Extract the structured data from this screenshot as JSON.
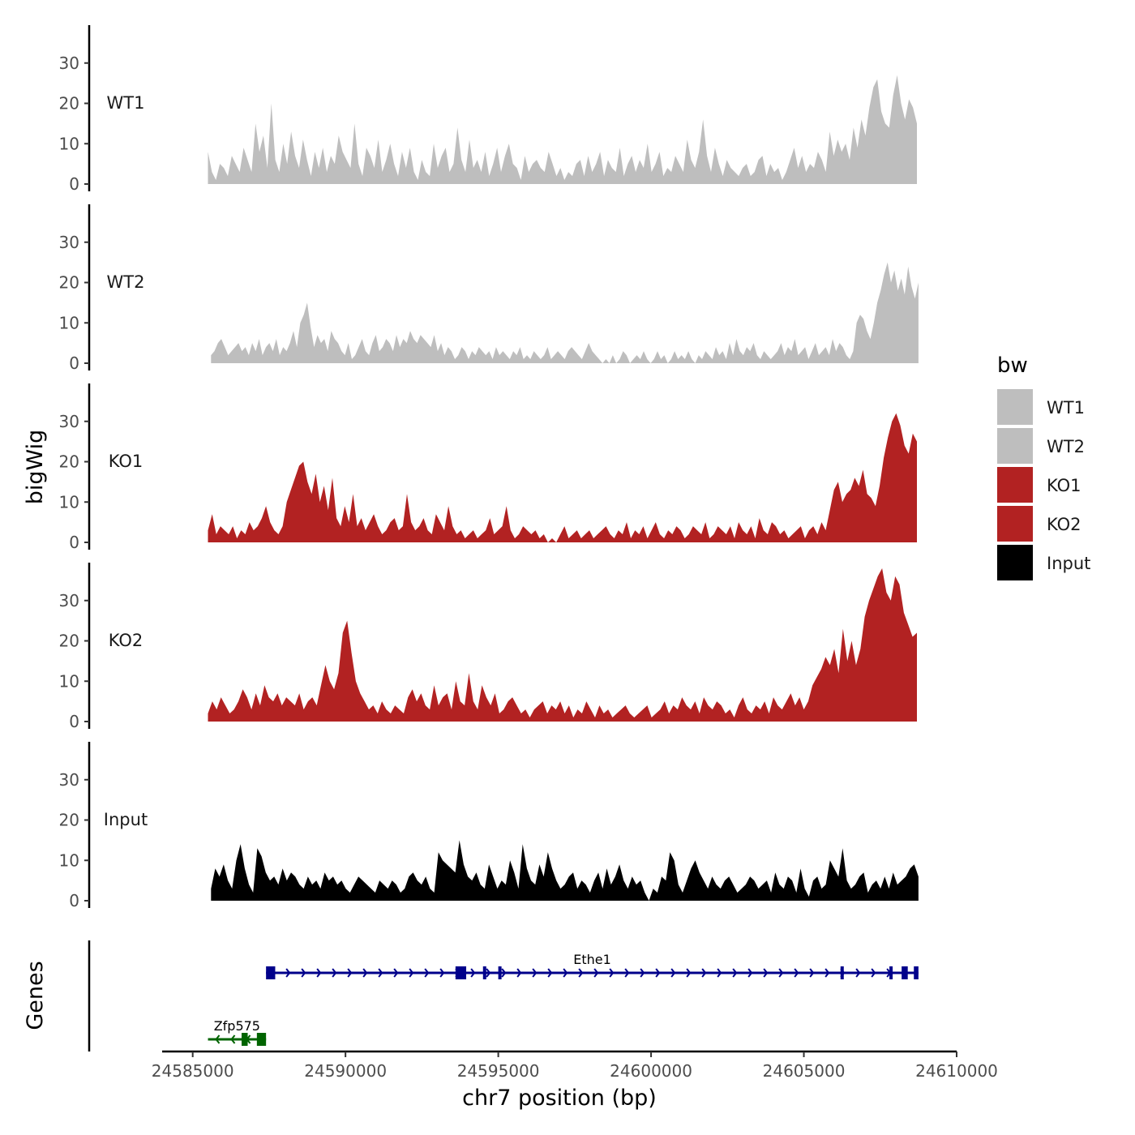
{
  "chart_data": {
    "type": "area",
    "ylabel": "bigWig",
    "xlabel": "chr7 position (bp)",
    "xlim": [
      24584000,
      24610000
    ],
    "x_ticks": [
      24585000,
      24590000,
      24595000,
      24600000,
      24605000,
      24610000
    ],
    "x_tick_labels": [
      "24585000",
      "24590000",
      "24595000",
      "24600000",
      "24605000",
      "24610000"
    ],
    "ylim": [
      0,
      40
    ],
    "y_ticks": [
      0,
      10,
      20,
      30
    ],
    "y_tick_labels": [
      "0",
      "10",
      "20",
      "30"
    ],
    "legend": {
      "title": "bw",
      "position": "right",
      "entries": [
        {
          "label": "WT1",
          "color": "#BEBEBE"
        },
        {
          "label": "WT2",
          "color": "#BEBEBE"
        },
        {
          "label": "KO1",
          "color": "#B22222"
        },
        {
          "label": "KO2",
          "color": "#B22222"
        },
        {
          "label": "Input",
          "color": "#000000"
        }
      ]
    },
    "series": [
      {
        "name": "WT1",
        "color": "#BEBEBE",
        "x_start": 24585500,
        "x_end": 24608700,
        "values": [
          8,
          3,
          1,
          5,
          4,
          2,
          7,
          5,
          3,
          9,
          6,
          3,
          15,
          8,
          12,
          4,
          20,
          6,
          3,
          10,
          5,
          13,
          7,
          4,
          11,
          6,
          2,
          8,
          4,
          9,
          3,
          7,
          5,
          12,
          8,
          6,
          4,
          15,
          5,
          2,
          9,
          7,
          4,
          11,
          3,
          6,
          10,
          5,
          2,
          8,
          4,
          9,
          3,
          1,
          6,
          3,
          2,
          10,
          4,
          7,
          9,
          3,
          5,
          14,
          6,
          3,
          11,
          4,
          6,
          3,
          8,
          2,
          5,
          9,
          3,
          7,
          10,
          5,
          4,
          1,
          7,
          3,
          5,
          6,
          4,
          3,
          8,
          5,
          2,
          4,
          1,
          3,
          2,
          5,
          6,
          2,
          7,
          3,
          5,
          8,
          2,
          6,
          4,
          3,
          9,
          2,
          5,
          7,
          3,
          6,
          4,
          10,
          3,
          5,
          8,
          2,
          4,
          3,
          7,
          5,
          3,
          11,
          6,
          4,
          8,
          16,
          7,
          3,
          9,
          5,
          2,
          6,
          4,
          3,
          2,
          4,
          5,
          2,
          3,
          6,
          7,
          2,
          5,
          3,
          4,
          1,
          3,
          6,
          9,
          4,
          7,
          3,
          5,
          4,
          8,
          6,
          3,
          13,
          7,
          11,
          8,
          10,
          6,
          14,
          9,
          16,
          12,
          19,
          24,
          26,
          18,
          15,
          14,
          22,
          27,
          20,
          16,
          21,
          19,
          15
        ]
      },
      {
        "name": "WT2",
        "color": "#BEBEBE",
        "x_start": 24585600,
        "x_end": 24608750,
        "values": [
          2,
          3,
          5,
          6,
          4,
          2,
          3,
          4,
          5,
          3,
          4,
          2,
          5,
          3,
          6,
          2,
          4,
          5,
          3,
          6,
          2,
          4,
          3,
          5,
          8,
          4,
          10,
          12,
          15,
          9,
          4,
          7,
          5,
          6,
          3,
          8,
          6,
          5,
          3,
          2,
          5,
          1,
          2,
          4,
          6,
          3,
          2,
          5,
          7,
          3,
          4,
          6,
          5,
          3,
          7,
          4,
          6,
          5,
          8,
          6,
          5,
          7,
          6,
          5,
          4,
          7,
          3,
          5,
          2,
          4,
          3,
          1,
          2,
          4,
          3,
          1,
          3,
          2,
          4,
          3,
          2,
          3,
          1,
          4,
          2,
          3,
          2,
          1,
          3,
          2,
          4,
          1,
          2,
          1,
          3,
          2,
          1,
          2,
          4,
          1,
          2,
          3,
          2,
          1,
          3,
          4,
          3,
          2,
          1,
          3,
          5,
          3,
          2,
          1,
          0,
          1,
          0,
          2,
          0,
          1,
          3,
          2,
          0,
          1,
          2,
          1,
          3,
          1,
          0,
          1,
          3,
          1,
          2,
          0,
          1,
          3,
          1,
          2,
          1,
          3,
          1,
          0,
          2,
          1,
          3,
          2,
          1,
          4,
          2,
          3,
          1,
          5,
          2,
          6,
          3,
          2,
          4,
          3,
          5,
          2,
          1,
          3,
          2,
          1,
          2,
          3,
          5,
          2,
          4,
          3,
          6,
          2,
          3,
          4,
          1,
          3,
          5,
          2,
          3,
          4,
          2,
          6,
          3,
          5,
          4,
          2,
          1,
          3,
          10,
          12,
          11,
          8,
          6,
          10,
          15,
          18,
          22,
          25,
          20,
          23,
          18,
          21,
          17,
          24,
          19,
          16,
          20
        ]
      },
      {
        "name": "KO1",
        "color": "#B22222",
        "x_start": 24585500,
        "x_end": 24608700,
        "values": [
          3,
          7,
          2,
          4,
          3,
          2,
          4,
          1,
          3,
          2,
          5,
          3,
          4,
          6,
          9,
          5,
          3,
          2,
          4,
          10,
          13,
          16,
          19,
          20,
          15,
          12,
          17,
          10,
          14,
          8,
          16,
          6,
          4,
          9,
          5,
          12,
          4,
          6,
          3,
          5,
          7,
          4,
          2,
          3,
          5,
          6,
          3,
          4,
          12,
          5,
          3,
          4,
          6,
          3,
          2,
          7,
          5,
          3,
          9,
          4,
          2,
          3,
          1,
          2,
          3,
          1,
          2,
          3,
          6,
          2,
          3,
          4,
          9,
          3,
          1,
          2,
          4,
          3,
          2,
          3,
          1,
          2,
          0,
          1,
          0,
          2,
          4,
          1,
          2,
          3,
          1,
          2,
          3,
          1,
          2,
          3,
          4,
          2,
          1,
          3,
          2,
          5,
          1,
          3,
          2,
          4,
          1,
          3,
          5,
          2,
          1,
          3,
          2,
          4,
          3,
          1,
          2,
          4,
          3,
          2,
          5,
          1,
          2,
          4,
          3,
          2,
          4,
          1,
          5,
          3,
          2,
          4,
          1,
          6,
          3,
          2,
          5,
          4,
          2,
          3,
          1,
          2,
          3,
          4,
          1,
          3,
          4,
          2,
          5,
          3,
          8,
          13,
          15,
          10,
          12,
          13,
          16,
          14,
          18,
          12,
          11,
          9,
          14,
          21,
          26,
          30,
          32,
          29,
          24,
          22,
          27,
          25
        ]
      },
      {
        "name": "KO2",
        "color": "#B22222",
        "x_start": 24585500,
        "x_end": 24608700,
        "values": [
          2,
          5,
          3,
          6,
          4,
          2,
          3,
          5,
          8,
          6,
          3,
          7,
          4,
          9,
          6,
          5,
          7,
          4,
          6,
          5,
          4,
          7,
          3,
          5,
          6,
          4,
          9,
          14,
          10,
          8,
          12,
          22,
          25,
          17,
          10,
          7,
          5,
          3,
          4,
          2,
          5,
          3,
          2,
          4,
          3,
          2,
          6,
          8,
          5,
          7,
          4,
          3,
          9,
          4,
          6,
          7,
          3,
          10,
          5,
          4,
          12,
          5,
          3,
          9,
          6,
          4,
          7,
          2,
          3,
          5,
          6,
          4,
          2,
          3,
          1,
          3,
          4,
          5,
          2,
          4,
          3,
          5,
          2,
          4,
          1,
          3,
          2,
          5,
          3,
          1,
          4,
          2,
          3,
          1,
          2,
          3,
          4,
          2,
          1,
          2,
          3,
          4,
          1,
          2,
          3,
          5,
          2,
          4,
          3,
          6,
          4,
          3,
          5,
          2,
          6,
          4,
          3,
          5,
          4,
          2,
          3,
          1,
          4,
          6,
          3,
          2,
          4,
          3,
          5,
          2,
          6,
          4,
          3,
          5,
          7,
          4,
          6,
          3,
          5,
          9,
          11,
          13,
          16,
          14,
          18,
          12,
          23,
          15,
          20,
          14,
          18,
          26,
          30,
          33,
          36,
          38,
          32,
          30,
          36,
          34,
          27,
          24,
          21,
          22
        ]
      },
      {
        "name": "Input",
        "color": "#000000",
        "x_start": 24585600,
        "x_end": 24608750,
        "values": [
          3,
          8,
          6,
          9,
          5,
          3,
          10,
          14,
          8,
          4,
          2,
          13,
          11,
          7,
          5,
          6,
          4,
          8,
          5,
          7,
          6,
          4,
          3,
          6,
          4,
          5,
          3,
          7,
          5,
          6,
          4,
          5,
          3,
          2,
          4,
          6,
          5,
          4,
          3,
          2,
          5,
          4,
          3,
          5,
          4,
          2,
          3,
          6,
          7,
          5,
          4,
          6,
          3,
          2,
          12,
          10,
          9,
          8,
          7,
          15,
          9,
          6,
          5,
          7,
          4,
          3,
          9,
          6,
          3,
          5,
          4,
          10,
          7,
          3,
          14,
          8,
          5,
          4,
          9,
          6,
          12,
          8,
          5,
          3,
          4,
          6,
          7,
          3,
          5,
          4,
          2,
          5,
          7,
          3,
          8,
          4,
          6,
          9,
          5,
          3,
          6,
          4,
          5,
          2,
          0,
          3,
          2,
          6,
          5,
          12,
          10,
          4,
          2,
          5,
          8,
          10,
          7,
          5,
          3,
          6,
          4,
          3,
          5,
          6,
          4,
          2,
          3,
          4,
          6,
          5,
          3,
          4,
          5,
          2,
          7,
          4,
          3,
          6,
          5,
          2,
          8,
          3,
          1,
          5,
          6,
          3,
          4,
          10,
          8,
          6,
          13,
          5,
          3,
          4,
          6,
          7,
          2,
          4,
          5,
          3,
          6,
          3,
          7,
          4,
          5,
          6,
          8,
          9,
          6
        ]
      }
    ],
    "gene_track": {
      "label": "Genes",
      "genes": [
        {
          "name": "Ethe1",
          "strand": "+",
          "start": 24587400,
          "end": 24608750,
          "color": "#00008B",
          "exons": [
            [
              24587400,
              24587700
            ],
            [
              24593600,
              24593950
            ],
            [
              24594500,
              24594600
            ],
            [
              24595000,
              24595100
            ],
            [
              24606200,
              24606300
            ],
            [
              24607800,
              24607900
            ],
            [
              24608200,
              24608400
            ],
            [
              24608600,
              24608750
            ]
          ]
        },
        {
          "name": "Zfp575",
          "strand": "-",
          "start": 24585500,
          "end": 24587400,
          "color": "#006400",
          "exons": [
            [
              24586600,
              24586800
            ],
            [
              24587100,
              24587400
            ]
          ]
        }
      ]
    }
  }
}
